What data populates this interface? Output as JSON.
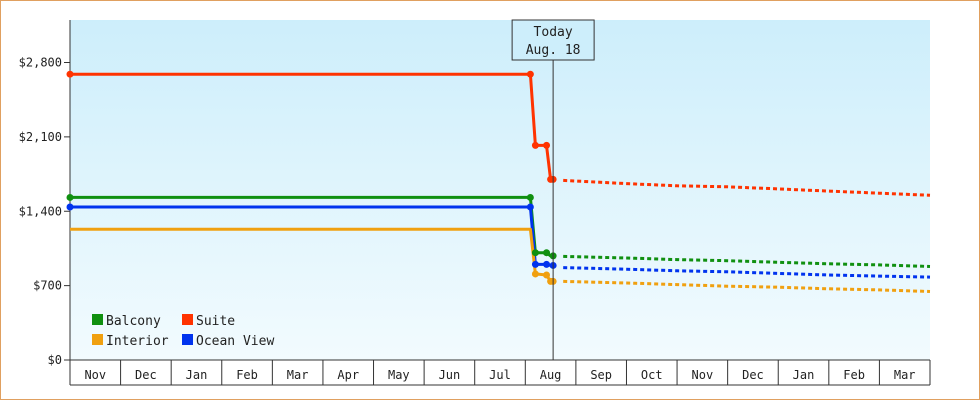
{
  "chart_data": {
    "type": "line",
    "y_ticks": [
      "$0",
      "$700",
      "$1,400",
      "$2,100",
      "$2,800"
    ],
    "y_tick_values": [
      0,
      700,
      1400,
      2100,
      2800
    ],
    "ylim": [
      0,
      3200
    ],
    "x_ticks": [
      "Nov",
      "Dec",
      "Jan",
      "Feb",
      "Mar",
      "Apr",
      "May",
      "Jun",
      "Jul",
      "Aug",
      "Sep",
      "Oct",
      "Nov",
      "Dec",
      "Jan",
      "Feb",
      "Mar"
    ],
    "today_marker": {
      "line1": "Today",
      "line2": "Aug. 18",
      "month_index": 9.55
    },
    "colors": {
      "Balcony": "#109010",
      "Suite": "#ff3300",
      "Interior": "#f0a010",
      "Ocean View": "#0033ee"
    },
    "series": [
      {
        "name": "Suite",
        "historical": [
          [
            0,
            2690
          ],
          [
            9.1,
            2690
          ],
          [
            9.2,
            2020
          ],
          [
            9.42,
            2020
          ],
          [
            9.5,
            1700
          ],
          [
            9.55,
            1700
          ]
        ],
        "forecast": [
          [
            9.75,
            1690
          ],
          [
            11,
            1660
          ],
          [
            12,
            1640
          ],
          [
            13,
            1630
          ],
          [
            14,
            1610
          ],
          [
            15,
            1590
          ],
          [
            16,
            1570
          ],
          [
            17,
            1550
          ]
        ]
      },
      {
        "name": "Balcony",
        "historical": [
          [
            0,
            1530
          ],
          [
            9.1,
            1530
          ],
          [
            9.2,
            1010
          ],
          [
            9.42,
            1010
          ],
          [
            9.5,
            980
          ],
          [
            9.55,
            980
          ]
        ],
        "forecast": [
          [
            9.75,
            975
          ],
          [
            11,
            960
          ],
          [
            12,
            945
          ],
          [
            13,
            935
          ],
          [
            14,
            920
          ],
          [
            15,
            905
          ],
          [
            16,
            895
          ],
          [
            17,
            880
          ]
        ]
      },
      {
        "name": "Ocean View",
        "historical": [
          [
            0,
            1440
          ],
          [
            9.1,
            1440
          ],
          [
            9.2,
            900
          ],
          [
            9.42,
            900
          ],
          [
            9.5,
            890
          ],
          [
            9.55,
            890
          ]
        ],
        "forecast": [
          [
            9.75,
            870
          ],
          [
            11,
            855
          ],
          [
            12,
            840
          ],
          [
            13,
            830
          ],
          [
            14,
            815
          ],
          [
            15,
            800
          ],
          [
            16,
            790
          ],
          [
            17,
            780
          ]
        ]
      },
      {
        "name": "Interior",
        "historical": [
          [
            0,
            1230
          ],
          [
            9.1,
            1230
          ],
          [
            9.2,
            810
          ],
          [
            9.42,
            800
          ],
          [
            9.5,
            740
          ],
          [
            9.55,
            740
          ]
        ],
        "forecast": [
          [
            9.75,
            740
          ],
          [
            11,
            725
          ],
          [
            12,
            710
          ],
          [
            13,
            695
          ],
          [
            14,
            685
          ],
          [
            15,
            670
          ],
          [
            16,
            660
          ],
          [
            17,
            645
          ]
        ]
      }
    ],
    "legend": [
      {
        "name": "Balcony",
        "color": "#109010"
      },
      {
        "name": "Suite",
        "color": "#ff3300"
      },
      {
        "name": "Interior",
        "color": "#f0a010"
      },
      {
        "name": "Ocean View",
        "color": "#0033ee"
      }
    ],
    "markers": [
      {
        "series": "Suite",
        "points": [
          [
            0,
            2690
          ],
          [
            9.1,
            2690
          ],
          [
            9.2,
            2020
          ],
          [
            9.42,
            2020
          ],
          [
            9.5,
            1700
          ],
          [
            9.55,
            1700
          ]
        ]
      },
      {
        "series": "Balcony",
        "points": [
          [
            0,
            1530
          ],
          [
            9.1,
            1530
          ],
          [
            9.2,
            1010
          ],
          [
            9.42,
            1010
          ],
          [
            9.55,
            980
          ]
        ]
      },
      {
        "series": "Ocean View",
        "points": [
          [
            0,
            1440
          ],
          [
            9.1,
            1440
          ],
          [
            9.2,
            900
          ],
          [
            9.42,
            900
          ],
          [
            9.55,
            890
          ]
        ]
      },
      {
        "series": "Interior",
        "points": [
          [
            9.2,
            810
          ],
          [
            9.42,
            800
          ],
          [
            9.5,
            740
          ],
          [
            9.55,
            740
          ]
        ]
      }
    ]
  }
}
